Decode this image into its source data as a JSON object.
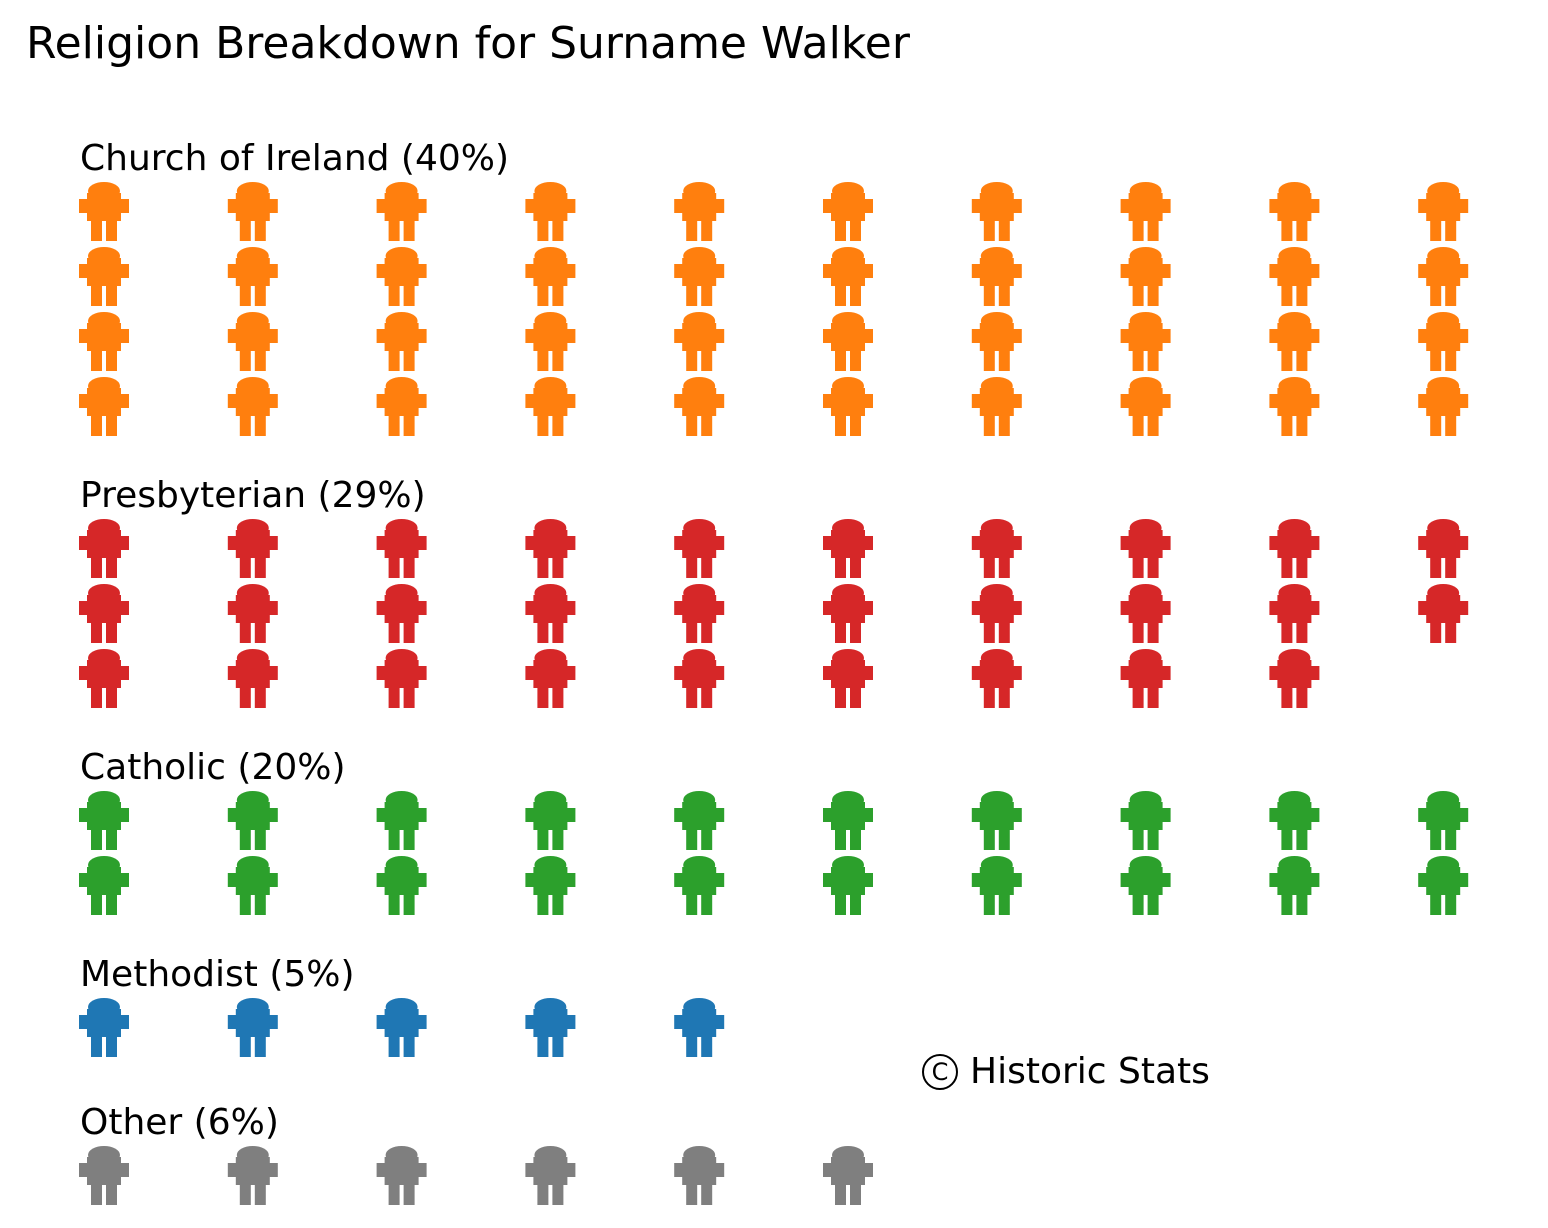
{
  "chart_data": {
    "type": "waffle",
    "title": "Religion Breakdown for Surname Walker",
    "icon": "person-icon",
    "icons_per_row": 10,
    "series": [
      {
        "label": "Church of Ireland (40%)",
        "name": "Church of Ireland",
        "percent": 40,
        "count": 40,
        "color": "#ff7f0e"
      },
      {
        "label": "Presbyterian (29%)",
        "name": "Presbyterian",
        "percent": 29,
        "count": 29,
        "color": "#d62728"
      },
      {
        "label": "Catholic (20%)",
        "name": "Catholic",
        "percent": 20,
        "count": 20,
        "color": "#2ca02c"
      },
      {
        "label": "Methodist (5%)",
        "name": "Methodist",
        "percent": 5,
        "count": 5,
        "color": "#1f77b4"
      },
      {
        "label": "Other (6%)",
        "name": "Other",
        "percent": 6,
        "count": 6,
        "color": "#7f7f7f"
      }
    ],
    "annotation": "Historic Stats",
    "annotation_symbol": "C"
  }
}
